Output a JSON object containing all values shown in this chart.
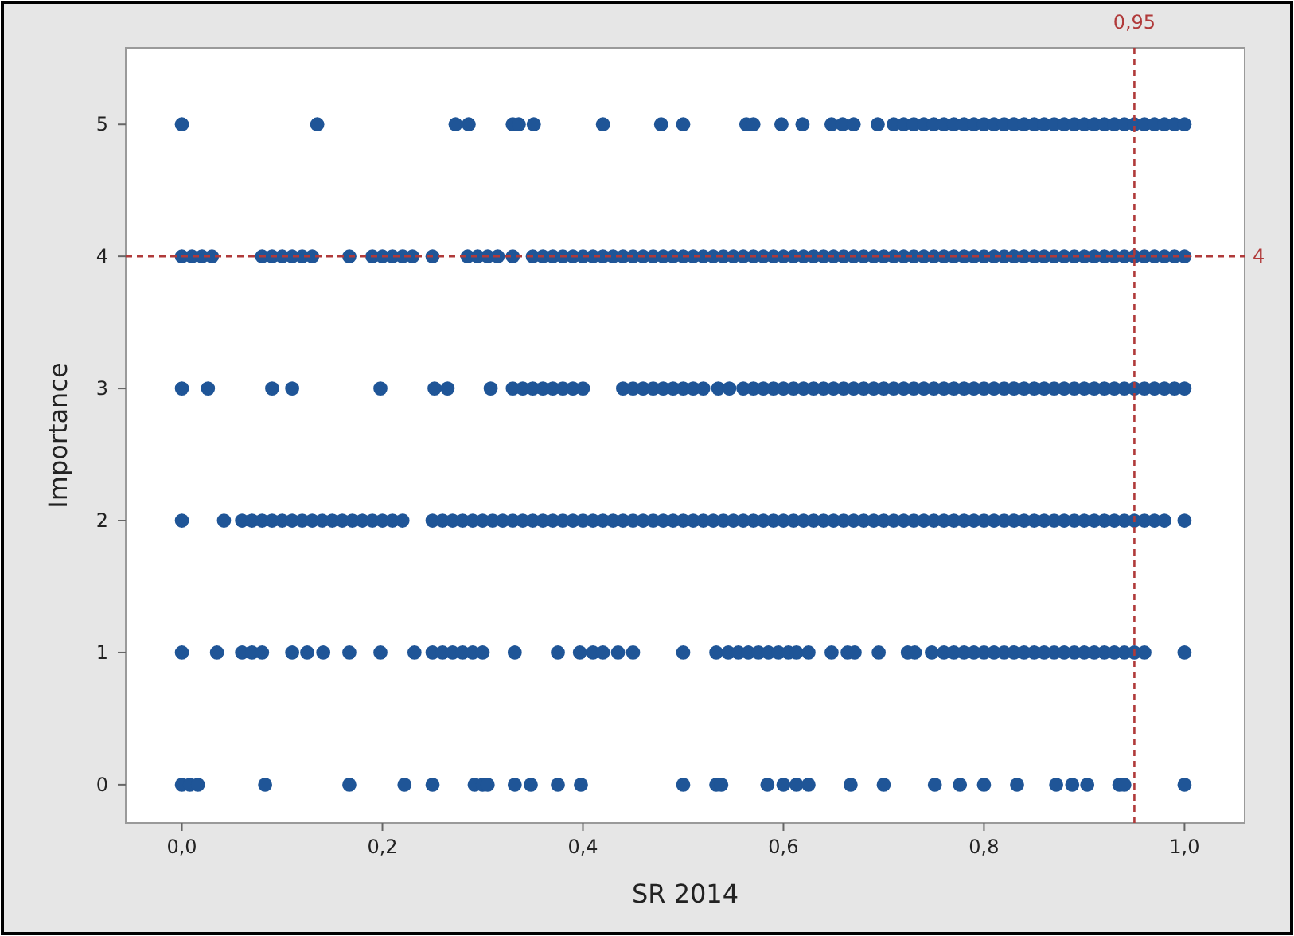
{
  "chart_data": {
    "type": "scatter",
    "xlabel": "SR 2014",
    "ylabel": "Importance",
    "xlim": [
      -0.056,
      1.06
    ],
    "ylim": [
      -0.29,
      5.58
    ],
    "xticks": [
      {
        "value": 0,
        "label": "0,0"
      },
      {
        "value": 0.2,
        "label": "0,2"
      },
      {
        "value": 0.4,
        "label": "0,4"
      },
      {
        "value": 0.6,
        "label": "0,6"
      },
      {
        "value": 0.8,
        "label": "0,8"
      },
      {
        "value": 1,
        "label": "1,0"
      }
    ],
    "yticks": [
      0,
      1,
      2,
      3,
      4,
      5
    ],
    "grid": false,
    "marker": "circle",
    "ref_lines": [
      {
        "axis": "x",
        "value": 0.95,
        "label": "0,95",
        "color": "#b03a3a",
        "line_style": "dashed"
      },
      {
        "axis": "y",
        "value": 4,
        "label": "4",
        "color": "#b03a3a",
        "line_style": "dashed"
      }
    ],
    "series": [
      {
        "color": "#1f5597",
        "x": [
          0,
          0.135,
          0.273,
          0.286,
          0.33,
          0.336,
          0.351,
          0.42,
          0.478,
          0.5,
          0.563,
          0.57,
          0.598,
          0.619,
          0.648,
          0.659,
          0.67,
          0.694,
          0.71,
          0.72,
          0.73,
          0.74,
          0.75,
          0.76,
          0.77,
          0.78,
          0.79,
          0.8,
          0.81,
          0.82,
          0.83,
          0.84,
          0.85,
          0.86,
          0.87,
          0.88,
          0.89,
          0.9,
          0.91,
          0.92,
          0.93,
          0.94,
          0.95,
          0.96,
          0.97,
          0.98,
          0.99,
          1.0
        ],
        "values": [
          5,
          5,
          5,
          5,
          5,
          5,
          5,
          5,
          5,
          5,
          5,
          5,
          5,
          5,
          5,
          5,
          5,
          5,
          5,
          5,
          5,
          5,
          5,
          5,
          5,
          5,
          5,
          5,
          5,
          5,
          5,
          5,
          5,
          5,
          5,
          5,
          5,
          5,
          5,
          5,
          5,
          5,
          5,
          5,
          5,
          5,
          5,
          5
        ]
      },
      {
        "color": "#1f5597",
        "x": [
          0,
          0.01,
          0.02,
          0.03,
          0.08,
          0.09,
          0.1,
          0.11,
          0.12,
          0.13,
          0.167,
          0.19,
          0.2,
          0.21,
          0.22,
          0.23,
          0.25,
          0.285,
          0.295,
          0.305,
          0.315,
          0.33,
          0.35,
          0.36,
          0.37,
          0.38,
          0.39,
          0.4,
          0.41,
          0.42,
          0.43,
          0.44,
          0.45,
          0.46,
          0.47,
          0.48,
          0.49,
          0.5,
          0.51,
          0.52,
          0.53,
          0.54,
          0.55,
          0.56,
          0.57,
          0.58,
          0.59,
          0.6,
          0.61,
          0.62,
          0.63,
          0.64,
          0.65,
          0.66,
          0.67,
          0.68,
          0.69,
          0.7,
          0.71,
          0.72,
          0.73,
          0.74,
          0.75,
          0.76,
          0.77,
          0.78,
          0.79,
          0.8,
          0.81,
          0.82,
          0.83,
          0.84,
          0.85,
          0.86,
          0.87,
          0.88,
          0.89,
          0.9,
          0.91,
          0.92,
          0.93,
          0.94,
          0.95,
          0.96,
          0.97,
          0.98,
          0.99,
          1.0
        ],
        "values": [
          4,
          4,
          4,
          4,
          4,
          4,
          4,
          4,
          4,
          4,
          4,
          4,
          4,
          4,
          4,
          4,
          4,
          4,
          4,
          4,
          4,
          4,
          4,
          4,
          4,
          4,
          4,
          4,
          4,
          4,
          4,
          4,
          4,
          4,
          4,
          4,
          4,
          4,
          4,
          4,
          4,
          4,
          4,
          4,
          4,
          4,
          4,
          4,
          4,
          4,
          4,
          4,
          4,
          4,
          4,
          4,
          4,
          4,
          4,
          4,
          4,
          4,
          4,
          4,
          4,
          4,
          4,
          4,
          4,
          4,
          4,
          4,
          4,
          4,
          4,
          4,
          4,
          4,
          4,
          4,
          4,
          4,
          4,
          4,
          4,
          4,
          4,
          4
        ]
      },
      {
        "color": "#1f5597",
        "x": [
          0,
          0.026,
          0.09,
          0.11,
          0.198,
          0.252,
          0.265,
          0.308,
          0.33,
          0.34,
          0.35,
          0.36,
          0.37,
          0.38,
          0.39,
          0.4,
          0.44,
          0.45,
          0.46,
          0.47,
          0.48,
          0.49,
          0.5,
          0.51,
          0.52,
          0.535,
          0.546,
          0.56,
          0.57,
          0.58,
          0.59,
          0.6,
          0.61,
          0.62,
          0.63,
          0.64,
          0.65,
          0.66,
          0.67,
          0.68,
          0.69,
          0.7,
          0.71,
          0.72,
          0.73,
          0.74,
          0.75,
          0.76,
          0.77,
          0.78,
          0.79,
          0.8,
          0.81,
          0.82,
          0.83,
          0.84,
          0.85,
          0.86,
          0.87,
          0.88,
          0.89,
          0.9,
          0.91,
          0.92,
          0.93,
          0.94,
          0.95,
          0.96,
          0.97,
          0.98,
          0.99,
          1.0
        ],
        "values": [
          3,
          3,
          3,
          3,
          3,
          3,
          3,
          3,
          3,
          3,
          3,
          3,
          3,
          3,
          3,
          3,
          3,
          3,
          3,
          3,
          3,
          3,
          3,
          3,
          3,
          3,
          3,
          3,
          3,
          3,
          3,
          3,
          3,
          3,
          3,
          3,
          3,
          3,
          3,
          3,
          3,
          3,
          3,
          3,
          3,
          3,
          3,
          3,
          3,
          3,
          3,
          3,
          3,
          3,
          3,
          3,
          3,
          3,
          3,
          3,
          3,
          3,
          3,
          3,
          3,
          3,
          3,
          3,
          3,
          3,
          3,
          3
        ]
      },
      {
        "color": "#1f5597",
        "x": [
          0,
          0.042,
          0.06,
          0.07,
          0.08,
          0.09,
          0.1,
          0.11,
          0.12,
          0.13,
          0.14,
          0.15,
          0.16,
          0.17,
          0.18,
          0.19,
          0.2,
          0.21,
          0.22,
          0.25,
          0.26,
          0.27,
          0.28,
          0.29,
          0.3,
          0.31,
          0.32,
          0.33,
          0.34,
          0.35,
          0.36,
          0.37,
          0.38,
          0.39,
          0.4,
          0.41,
          0.42,
          0.43,
          0.44,
          0.45,
          0.46,
          0.47,
          0.48,
          0.49,
          0.5,
          0.51,
          0.52,
          0.53,
          0.54,
          0.55,
          0.56,
          0.57,
          0.58,
          0.59,
          0.6,
          0.61,
          0.62,
          0.63,
          0.64,
          0.65,
          0.66,
          0.67,
          0.68,
          0.69,
          0.7,
          0.71,
          0.72,
          0.73,
          0.74,
          0.75,
          0.76,
          0.77,
          0.78,
          0.79,
          0.8,
          0.81,
          0.82,
          0.83,
          0.84,
          0.85,
          0.86,
          0.87,
          0.88,
          0.89,
          0.9,
          0.91,
          0.92,
          0.93,
          0.94,
          0.95,
          0.96,
          0.97,
          0.98,
          1.0
        ],
        "values": [
          2,
          2,
          2,
          2,
          2,
          2,
          2,
          2,
          2,
          2,
          2,
          2,
          2,
          2,
          2,
          2,
          2,
          2,
          2,
          2,
          2,
          2,
          2,
          2,
          2,
          2,
          2,
          2,
          2,
          2,
          2,
          2,
          2,
          2,
          2,
          2,
          2,
          2,
          2,
          2,
          2,
          2,
          2,
          2,
          2,
          2,
          2,
          2,
          2,
          2,
          2,
          2,
          2,
          2,
          2,
          2,
          2,
          2,
          2,
          2,
          2,
          2,
          2,
          2,
          2,
          2,
          2,
          2,
          2,
          2,
          2,
          2,
          2,
          2,
          2,
          2,
          2,
          2,
          2,
          2,
          2,
          2,
          2,
          2,
          2,
          2,
          2,
          2,
          2,
          2,
          2,
          2,
          2,
          2
        ]
      },
      {
        "color": "#1f5597",
        "x": [
          0,
          0.035,
          0.06,
          0.07,
          0.08,
          0.11,
          0.125,
          0.141,
          0.167,
          0.198,
          0.232,
          0.25,
          0.26,
          0.27,
          0.28,
          0.29,
          0.3,
          0.332,
          0.375,
          0.397,
          0.41,
          0.42,
          0.435,
          0.45,
          0.5,
          0.533,
          0.545,
          0.555,
          0.565,
          0.575,
          0.585,
          0.595,
          0.605,
          0.613,
          0.625,
          0.648,
          0.664,
          0.671,
          0.695,
          0.724,
          0.731,
          0.748,
          0.76,
          0.77,
          0.78,
          0.79,
          0.8,
          0.81,
          0.82,
          0.83,
          0.84,
          0.85,
          0.86,
          0.87,
          0.88,
          0.89,
          0.9,
          0.91,
          0.92,
          0.93,
          0.94,
          0.95,
          0.96,
          1.0
        ],
        "values": [
          1,
          1,
          1,
          1,
          1,
          1,
          1,
          1,
          1,
          1,
          1,
          1,
          1,
          1,
          1,
          1,
          1,
          1,
          1,
          1,
          1,
          1,
          1,
          1,
          1,
          1,
          1,
          1,
          1,
          1,
          1,
          1,
          1,
          1,
          1,
          1,
          1,
          1,
          1,
          1,
          1,
          1,
          1,
          1,
          1,
          1,
          1,
          1,
          1,
          1,
          1,
          1,
          1,
          1,
          1,
          1,
          1,
          1,
          1,
          1,
          1,
          1,
          1,
          1
        ]
      },
      {
        "color": "#1f5597",
        "x": [
          0,
          0.008,
          0.016,
          0.083,
          0.167,
          0.222,
          0.25,
          0.292,
          0.3,
          0.305,
          0.332,
          0.348,
          0.375,
          0.398,
          0.5,
          0.533,
          0.538,
          0.584,
          0.6,
          0.613,
          0.625,
          0.667,
          0.7,
          0.751,
          0.776,
          0.8,
          0.833,
          0.872,
          0.888,
          0.903,
          0.935,
          0.94,
          1.0
        ],
        "values": [
          0,
          0,
          0,
          0,
          0,
          0,
          0,
          0,
          0,
          0,
          0,
          0,
          0,
          0,
          0,
          0,
          0,
          0,
          0,
          0,
          0,
          0,
          0,
          0,
          0,
          0,
          0,
          0,
          0,
          0,
          0,
          0,
          0
        ]
      }
    ]
  }
}
